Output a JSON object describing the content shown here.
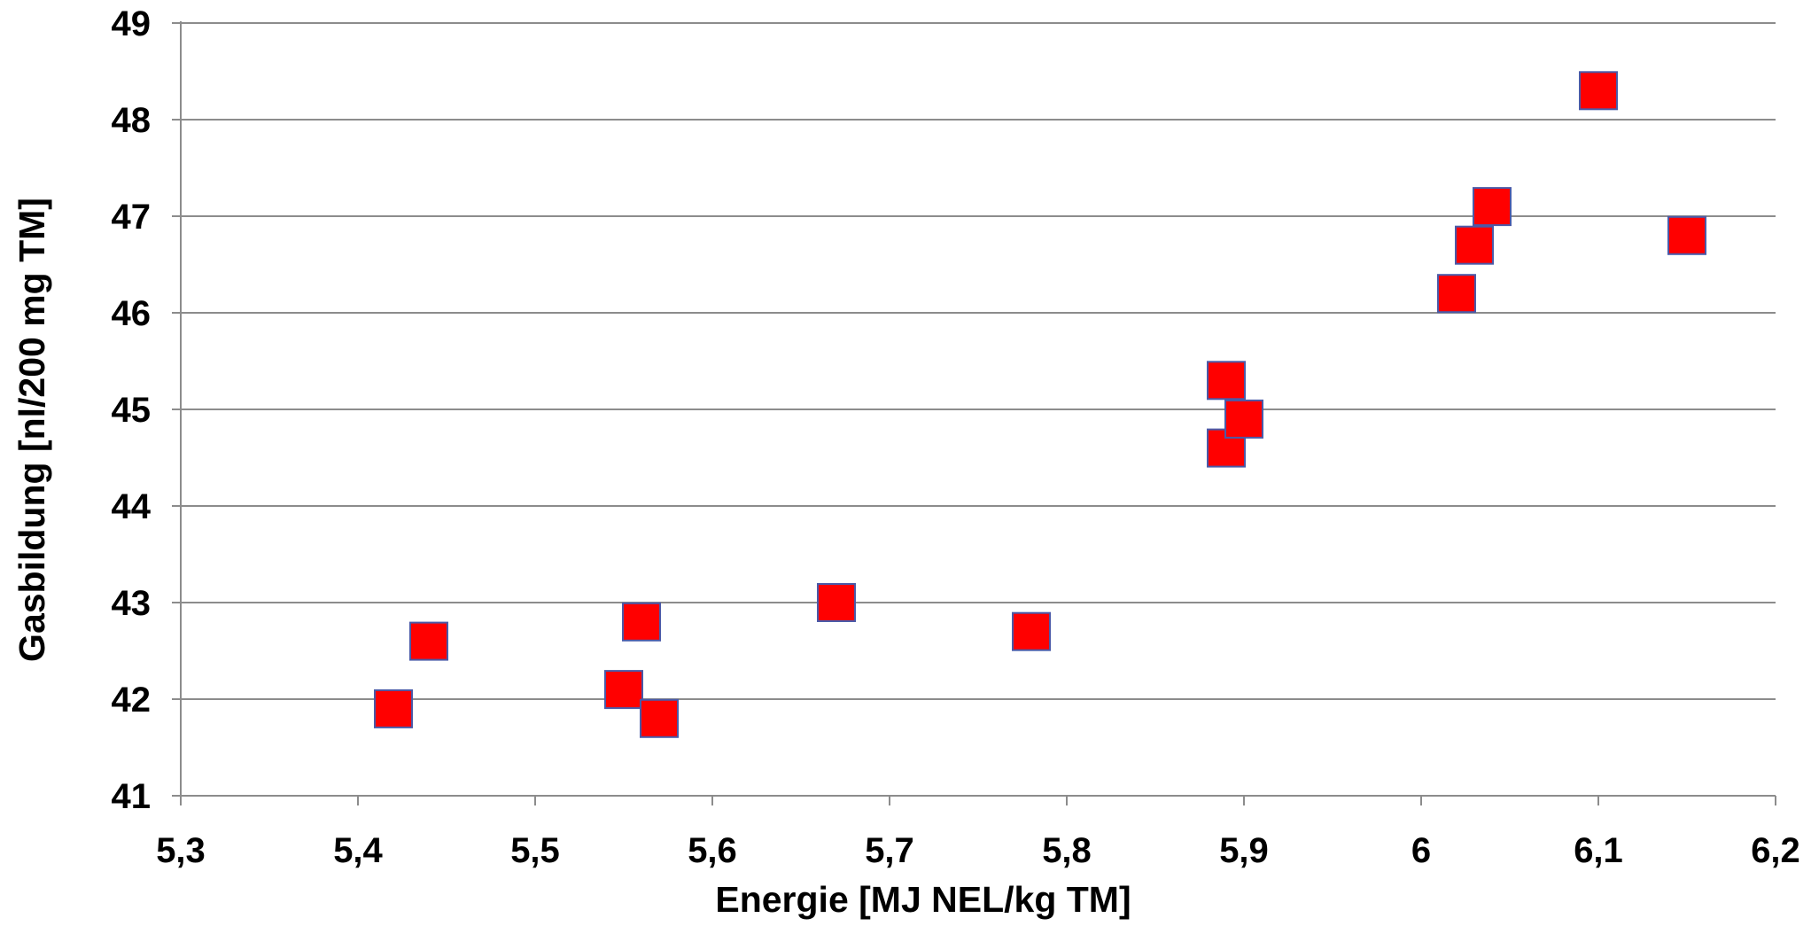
{
  "chart_data": {
    "type": "scatter",
    "xlabel": "Energie [MJ NEL/kg TM]",
    "ylabel": "Gasbildung [nl/200 mg TM]",
    "xlim": [
      5.3,
      6.2
    ],
    "ylim": [
      41,
      49
    ],
    "xticks": [
      "5,3",
      "5,4",
      "5,5",
      "5,6",
      "5,7",
      "5,8",
      "5,9",
      "6",
      "6,1",
      "6,2"
    ],
    "yticks": [
      "41",
      "42",
      "43",
      "44",
      "45",
      "46",
      "47",
      "48",
      "49"
    ],
    "grid": "horizontal",
    "marker": {
      "shape": "square",
      "fill": "#ff0000",
      "stroke": "#4a5aa8"
    },
    "points": [
      {
        "x": 5.42,
        "y": 41.9
      },
      {
        "x": 5.44,
        "y": 42.6
      },
      {
        "x": 5.55,
        "y": 42.1
      },
      {
        "x": 5.56,
        "y": 42.8
      },
      {
        "x": 5.57,
        "y": 41.8
      },
      {
        "x": 5.67,
        "y": 43.0
      },
      {
        "x": 5.78,
        "y": 42.7
      },
      {
        "x": 5.89,
        "y": 44.6
      },
      {
        "x": 5.89,
        "y": 45.3
      },
      {
        "x": 5.9,
        "y": 44.9
      },
      {
        "x": 6.02,
        "y": 46.2
      },
      {
        "x": 6.03,
        "y": 46.7
      },
      {
        "x": 6.04,
        "y": 47.1
      },
      {
        "x": 6.1,
        "y": 48.3
      },
      {
        "x": 6.15,
        "y": 46.8
      }
    ]
  }
}
